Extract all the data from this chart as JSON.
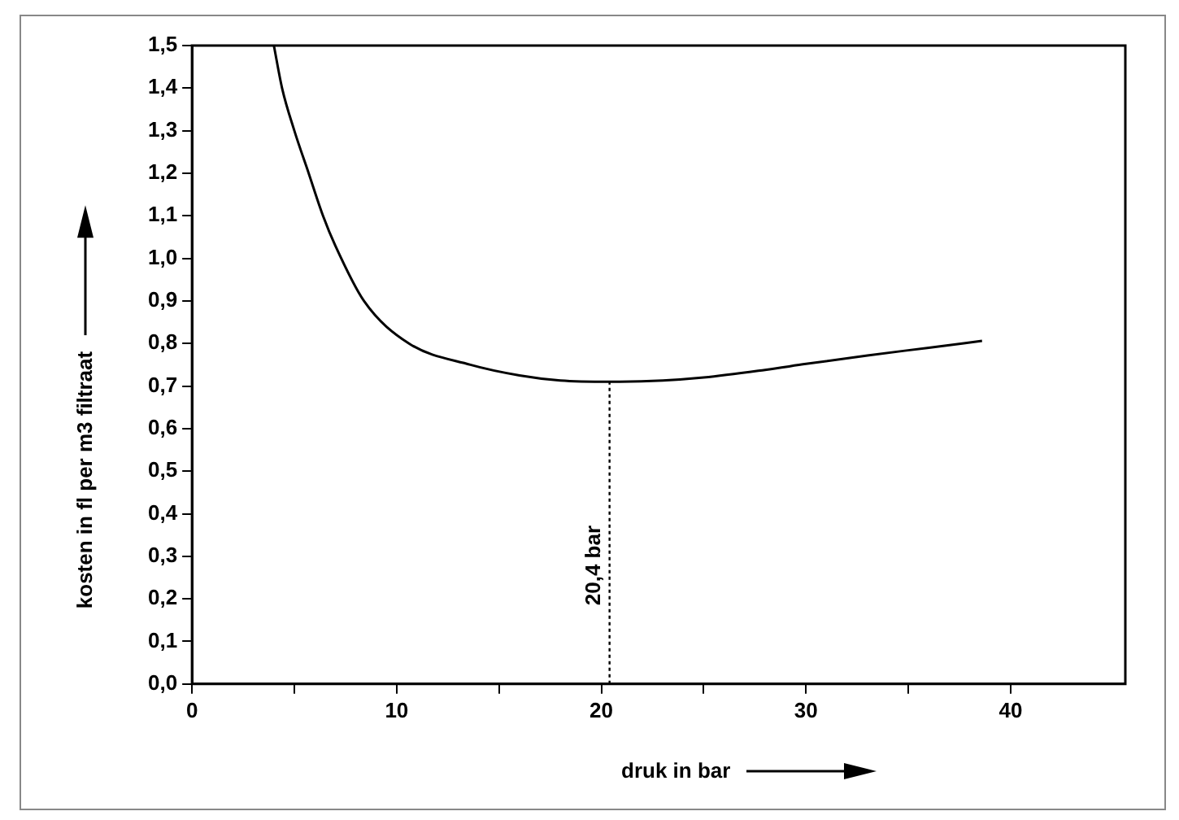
{
  "chart_data": {
    "type": "line",
    "xlabel": "druk in bar",
    "ylabel": "kosten in fl per m3 filtraat",
    "x": [
      4.0,
      4.4,
      5.0,
      5.7,
      6.4,
      7.0,
      8.4,
      10.6,
      13.6,
      16,
      18,
      20.4,
      23,
      25,
      28,
      30,
      33,
      36,
      38.6
    ],
    "series": [
      {
        "color": "#000000",
        "values": [
          1.5,
          1.4,
          1.3,
          1.2,
          1.1,
          1.03,
          0.9,
          0.8,
          0.75,
          0.725,
          0.713,
          0.71,
          0.713,
          0.72,
          0.738,
          0.752,
          0.772,
          0.79,
          0.806
        ]
      }
    ],
    "xlim": [
      0,
      45.6
    ],
    "ylim": [
      0,
      1.5
    ],
    "xticks": [
      0,
      {
        "value": 5,
        "label": null
      },
      10,
      {
        "value": 15,
        "label": null
      },
      20,
      {
        "value": 25,
        "label": null
      },
      30,
      {
        "value": 35,
        "label": null
      },
      40
    ],
    "yticks": [
      {
        "value": 0,
        "label": "0,0"
      },
      {
        "value": 0.1,
        "label": "0,1"
      },
      {
        "value": 0.2,
        "label": "0,2"
      },
      {
        "value": 0.3,
        "label": "0,3"
      },
      {
        "value": 0.4,
        "label": "0,4"
      },
      {
        "value": 0.5,
        "label": "0,5"
      },
      {
        "value": 0.6,
        "label": "0,6"
      },
      {
        "value": 0.7,
        "label": "0,7"
      },
      {
        "value": 0.8,
        "label": "0,8"
      },
      {
        "value": 0.9,
        "label": "0,9"
      },
      {
        "value": 1.0,
        "label": "1,0"
      },
      {
        "value": 1.1,
        "label": "1,1"
      },
      {
        "value": 1.2,
        "label": "1,2"
      },
      {
        "value": 1.3,
        "label": "1,3"
      },
      {
        "value": 1.4,
        "label": "1,4"
      },
      {
        "value": 1.5,
        "label": "1,5"
      }
    ],
    "ref_lines": [
      {
        "axis": "x",
        "value": 20.4,
        "label": "20,4 bar",
        "color": "#000000",
        "line_style": "dotted"
      }
    ],
    "grid": false,
    "legend": false,
    "marker": "none",
    "line_style": "solid"
  }
}
